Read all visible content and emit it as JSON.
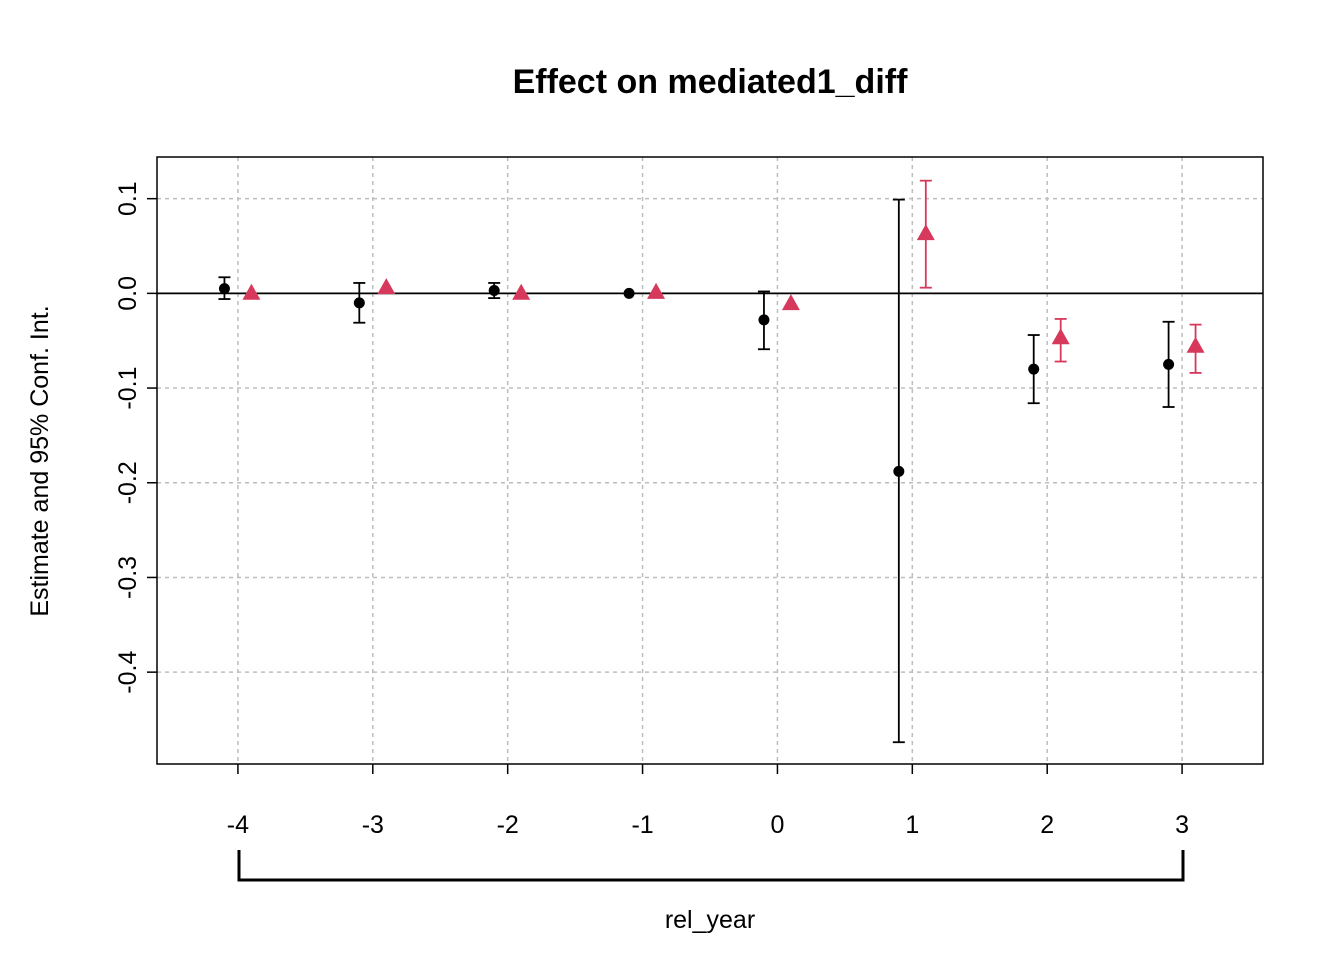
{
  "chart_data": {
    "type": "scatter",
    "title": "Effect on mediated1_diff",
    "xlabel": "rel_year",
    "ylabel": "Estimate and 95% Conf. Int.",
    "x_ticks": [
      "-4",
      "-3",
      "-2",
      "-1",
      "0",
      "1",
      "2",
      "3"
    ],
    "y_ticks": [
      "0.1",
      "0.0",
      "-0.1",
      "-0.2",
      "-0.3",
      "-0.4"
    ],
    "y_tick_values": [
      0.1,
      0.0,
      -0.1,
      -0.2,
      -0.3,
      -0.4
    ],
    "xlim": [
      -4.6,
      3.6
    ],
    "ylim": [
      -0.497,
      0.144
    ],
    "grid": true,
    "reference_line_y": 0,
    "series": [
      {
        "marker": "circle",
        "color": "#000000",
        "points": [
          {
            "x": -4,
            "y": 0.005,
            "lo": -0.006,
            "hi": 0.017
          },
          {
            "x": -3,
            "y": -0.01,
            "lo": -0.031,
            "hi": 0.011
          },
          {
            "x": -2,
            "y": 0.003,
            "lo": -0.005,
            "hi": 0.011
          },
          {
            "x": -1,
            "y": 0.0,
            "lo": 0.0,
            "hi": 0.0
          },
          {
            "x": 0,
            "y": -0.028,
            "lo": -0.059,
            "hi": 0.002
          },
          {
            "x": 1,
            "y": -0.188,
            "lo": -0.474,
            "hi": 0.099
          },
          {
            "x": 2,
            "y": -0.08,
            "lo": -0.116,
            "hi": -0.044
          },
          {
            "x": 3,
            "y": -0.075,
            "lo": -0.12,
            "hi": -0.03
          }
        ]
      },
      {
        "marker": "triangle",
        "color": "#d6395b",
        "points": [
          {
            "x": -4,
            "y": 0.0,
            "lo": 0.0,
            "hi": 0.0
          },
          {
            "x": -3,
            "y": 0.006,
            "lo": 0.006,
            "hi": 0.006
          },
          {
            "x": -2,
            "y": 0.0,
            "lo": 0.0,
            "hi": 0.0
          },
          {
            "x": -1,
            "y": 0.001,
            "lo": 0.001,
            "hi": 0.001
          },
          {
            "x": 0,
            "y": -0.011,
            "lo": -0.011,
            "hi": -0.011
          },
          {
            "x": 1,
            "y": 0.063,
            "lo": 0.006,
            "hi": 0.119
          },
          {
            "x": 2,
            "y": -0.047,
            "lo": -0.072,
            "hi": -0.027
          },
          {
            "x": 3,
            "y": -0.056,
            "lo": -0.084,
            "hi": -0.033
          }
        ]
      }
    ]
  }
}
